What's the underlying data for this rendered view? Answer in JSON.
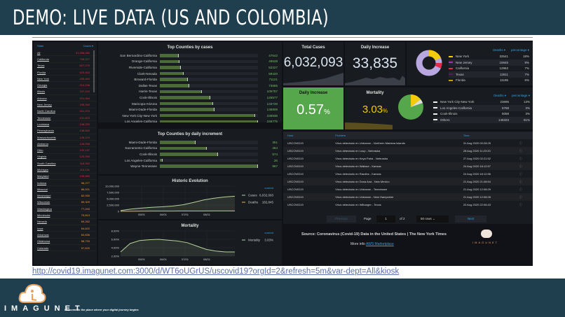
{
  "slide": {
    "title": "DEMO: LIVE DATA (US AND COLOMBIA)",
    "url": "http://covid19.imagunet.com:3000/d/WT6oUGrUS/uscovid19?orgId=2&refresh=5m&var-dept=All&kiosk",
    "brand": "IMAGUNET",
    "tagline": "Welcome to the place where your digital journey begins"
  },
  "states": {
    "col_state": "State",
    "col_cases": "Cases ▾",
    "rows": [
      [
        "All",
        "31,558,080"
      ],
      [
        "California",
        "708,207"
      ],
      [
        "Texas",
        "627,079"
      ],
      [
        "Florida",
        "623,463"
      ],
      [
        "New York",
        "435,480"
      ],
      [
        "Georgia",
        "214,236"
      ],
      [
        "Illinois",
        "237,219"
      ],
      [
        "Arizona",
        "201,064"
      ],
      [
        "New Jersey",
        "195,340"
      ],
      [
        "North Carolina",
        "161,370"
      ],
      [
        "Tennessee",
        "131,823"
      ],
      [
        "Louisiana",
        "148,320"
      ],
      [
        "Pennsylvania",
        "138,840"
      ],
      [
        "Massachusetts",
        "128,379"
      ],
      [
        "Alabama",
        "126,058"
      ],
      [
        "Ohio",
        "120,137"
      ],
      [
        "Virginia",
        "120,394"
      ],
      [
        "South Carolina",
        "118,992"
      ],
      [
        "Michigan",
        "113,131"
      ],
      [
        "Maryland",
        "106,680"
      ],
      [
        "Indiana",
        "96,277"
      ],
      [
        "Missouri",
        "86,021"
      ],
      [
        "Mississippi",
        "82,930"
      ],
      [
        "Wisconsin",
        "80,329"
      ],
      [
        "Washington",
        "77,243"
      ],
      [
        "Minnesota",
        "75,813"
      ],
      [
        "Nevada",
        "69,262"
      ],
      [
        "Iowa",
        "64,622"
      ],
      [
        "Arkansas",
        "60,836"
      ],
      [
        "Oklahoma",
        "58,733"
      ],
      [
        "Colorado",
        "57,620"
      ]
    ]
  },
  "top_cases": {
    "title": "Top Counties by cases",
    "max": 246775,
    "rows": [
      [
        "San Bernardino-California",
        47642
      ],
      [
        "Orange-California",
        48538
      ],
      [
        "Riverside-California",
        52227
      ],
      [
        "Clark-Nevada",
        59420
      ],
      [
        "Broward-Florida",
        71121
      ],
      [
        "Dallas-Texas",
        73685
      ],
      [
        "Harris-Texas",
        105757
      ],
      [
        "Cook-Illinois",
        126577
      ],
      [
        "Maricopa-Arizona",
        133728
      ],
      [
        "Miami-Dade-Florida",
        136909
      ],
      [
        "New York City-New York",
        238938
      ],
      [
        "Los Angeles-California",
        246775
      ]
    ]
  },
  "top_increment": {
    "title": "Top Counties by daily increment",
    "max": 967,
    "rows": [
      [
        "Miami-Dade-Florida",
        351
      ],
      [
        "Sacramento-California",
        464
      ],
      [
        "Cook-Illinois",
        574
      ],
      [
        "Los Angeles-California",
        26
      ],
      [
        "Wayne-Tennessee",
        967
      ]
    ]
  },
  "historic": {
    "title": "Historic Evolution",
    "y_ticks": [
      "10,000,000",
      "7,500,000",
      "5,000,000",
      "2,500,000",
      "0"
    ],
    "x_ticks": [
      "05/01",
      "06/01",
      "07/01",
      "08/01"
    ],
    "current_label": "current",
    "series": [
      {
        "name": "Cases",
        "value": "6,032,093",
        "color": "#b5d39a",
        "points": [
          0.3,
          0.9,
          1.3,
          1.6,
          1.8,
          2.1,
          2.6,
          3.5,
          4.5,
          5.2,
          5.7,
          6.0
        ]
      },
      {
        "name": "Deaths",
        "value": "182,845",
        "color": "#d9b86a",
        "points": [
          0.01,
          0.05,
          0.08,
          0.1,
          0.11,
          0.12,
          0.13,
          0.14,
          0.15,
          0.16,
          0.17,
          0.18
        ]
      }
    ]
  },
  "mortality_chart": {
    "title": "Mortality",
    "y_ticks": [
      "8.00%",
      "6.00%",
      "4.00%",
      "2.00%"
    ],
    "x_ticks": [
      "05/01",
      "06/01",
      "07/01",
      "08/01"
    ],
    "current_label": "current",
    "series": [
      {
        "name": "Mortality",
        "value": "3.03%",
        "color": "#b5d39a",
        "points": [
          3.0,
          5.0,
          5.7,
          5.9,
          6.0,
          5.8,
          5.6,
          5.2,
          4.4,
          3.6,
          3.2,
          3.0,
          3.0
        ]
      }
    ]
  },
  "stats": {
    "total_cases_title": "Total Cases",
    "total_cases": "6,032,093",
    "daily_inc_title": "Daily Increase",
    "daily_inc": "33,835",
    "daily_pct_title": "Daily Increase",
    "daily_pct": "0.57",
    "mortality_title": "Mortality",
    "mortality": "3.03",
    "pct": "%",
    "green": "#56a64b",
    "yellow": "#f2cc0c"
  },
  "deaths_states": {
    "col_deaths": "Deaths ▾",
    "col_pct": "percentage ▾",
    "rows": [
      [
        "New York",
        "32541",
        "18%",
        "#f2cc0c"
      ],
      [
        "New Jersey",
        "15945",
        "9%",
        "#8f3bb8"
      ],
      [
        "California",
        "12963",
        "7%",
        "#e02f44"
      ],
      [
        "Texas",
        "12811",
        "7%",
        "#5a1a5a"
      ],
      [
        "Florida",
        "11186",
        "6%",
        "#c4a000"
      ]
    ]
  },
  "deaths_counties": {
    "col_deaths": "Deaths ▾",
    "col_pct": "percentage ▾",
    "rows": [
      [
        "New York City-New York",
        "23695",
        "13%"
      ],
      [
        "Los Angeles-California",
        "5769",
        "3%"
      ],
      [
        "Cook-Illinois",
        "5058",
        "3%"
      ],
      [
        "Others",
        "148323",
        "81%"
      ]
    ]
  },
  "alerts": {
    "cols": [
      "Host",
      "Problem",
      "Time"
    ],
    "rows": [
      [
        "USCOVID19",
        "Virus detectado en Unknown - Northern Mariana Islands",
        "31 Aug 2020 00:28:25"
      ],
      [
        "USCOVID19",
        "Virus detectado en Loup - Nebraska",
        "28 Aug 2020 11:23:20"
      ],
      [
        "USCOVID19",
        "Virus detectado en Keya Paha - Nebraska",
        "27 Aug 2020 02:21:52"
      ],
      [
        "USCOVID19",
        "Virus detectado en Wallace - Kansas",
        "24 Aug 2020 18:12:57"
      ],
      [
        "USCOVID19",
        "Virus detectado en Rawlins - Kansas",
        "24 Aug 2020 18:12:56"
      ],
      [
        "USCOVID19",
        "Virus detectado en Dona Ana - New Mexico",
        "21 Aug 2020 21:08:54"
      ],
      [
        "USCOVID19",
        "Virus detectado en Unknown - Tennessee",
        "21 Aug 2020 12:08:29"
      ],
      [
        "USCOVID19",
        "Virus detectado en Unknown - New Hampshire",
        "21 Aug 2020 12:08:28"
      ],
      [
        "USCOVID19",
        "Virus detectado en Wilbarger - Texas",
        "20 Aug 2020 22:06:43"
      ]
    ],
    "previous": "Previous",
    "page_label": "Page",
    "page": "1",
    "of": "of 2",
    "rows_select": "50 rows",
    "next": "Next"
  },
  "source": {
    "text": "Source: Coronavirus (Covid-19) Data in the United States | The New York Times",
    "more": "More info",
    "link": "AWS Marketplace",
    "brand": "IMAGUNET"
  }
}
